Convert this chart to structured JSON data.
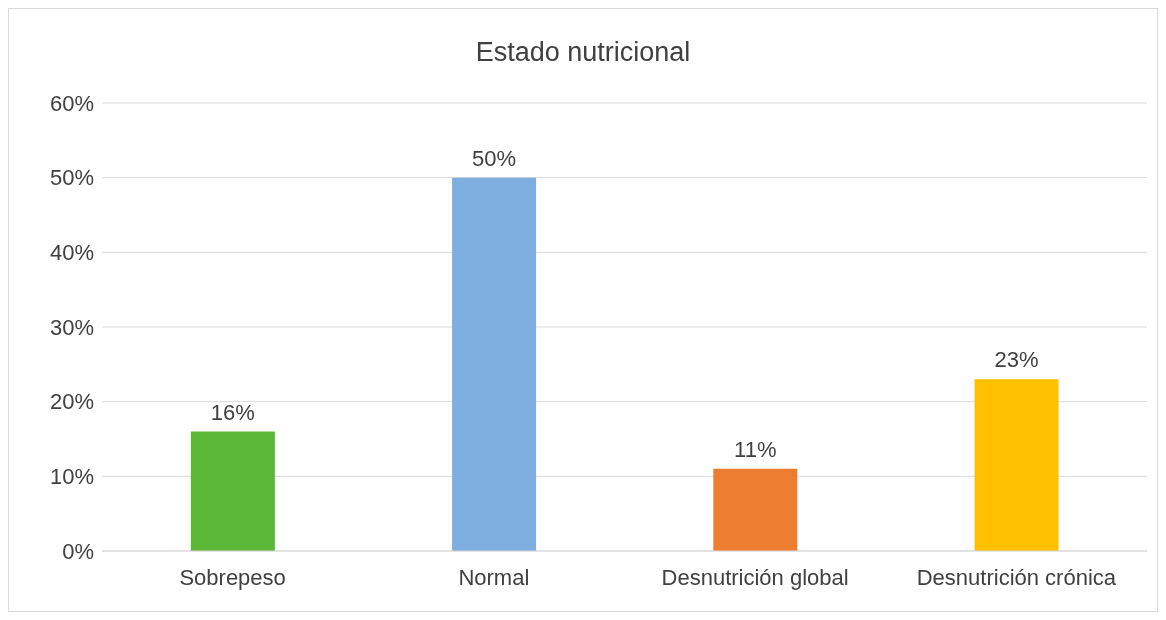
{
  "chart_data": {
    "type": "bar",
    "title": "Estado nutricional",
    "categories": [
      "Sobrepeso",
      "Normal",
      "Desnutrición global",
      "Desnutrición crónica"
    ],
    "values": [
      16,
      50,
      11,
      23
    ],
    "colors": [
      "#5ab738",
      "#7eaedf",
      "#ed7d31",
      "#ffc000"
    ],
    "value_labels": [
      "16%",
      "50%",
      "11%",
      "23%"
    ],
    "ylim": [
      0,
      60
    ],
    "yticks": [
      {
        "value": 0,
        "label": "0%"
      },
      {
        "value": 10,
        "label": "10%"
      },
      {
        "value": 20,
        "label": "20%"
      },
      {
        "value": 30,
        "label": "30%"
      },
      {
        "value": 40,
        "label": "40%"
      },
      {
        "value": 50,
        "label": "50%"
      },
      {
        "value": 60,
        "label": "60%"
      }
    ],
    "grid": "y",
    "legend": false
  }
}
